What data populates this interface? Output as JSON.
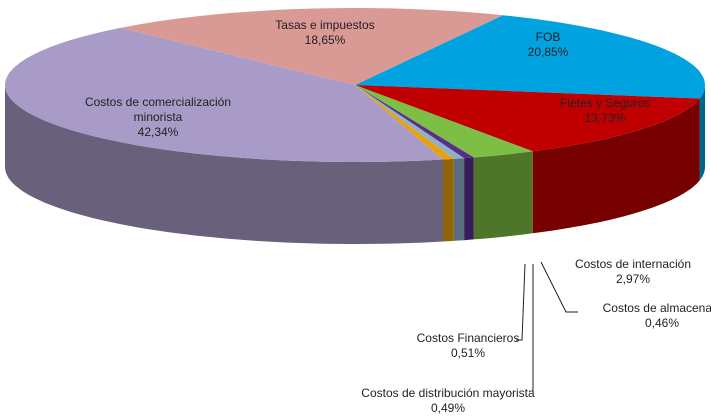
{
  "chart_data": {
    "type": "pie",
    "categories": [
      "FOB",
      "Fletes y Seguros",
      "Costos de internación",
      "Costos de almacenaje",
      "Costos de distribución mayorista",
      "Costos Financieros",
      "Costos de comercialización minorista",
      "Tasas e impuestos"
    ],
    "values": [
      20.85,
      13.73,
      2.97,
      0.46,
      0.49,
      0.51,
      42.34,
      18.65
    ],
    "value_labels": [
      "20,85%",
      "13,73%",
      "2,97%",
      "0,46%",
      "0,49%",
      "0,51%",
      "42,34%",
      "18,65%"
    ],
    "colors": [
      "#00a3e0",
      "#c00000",
      "#7dbf45",
      "#5a2d8c",
      "#8fb1c8",
      "#e9a20c",
      "#a99bc7",
      "#d99a96"
    ]
  }
}
